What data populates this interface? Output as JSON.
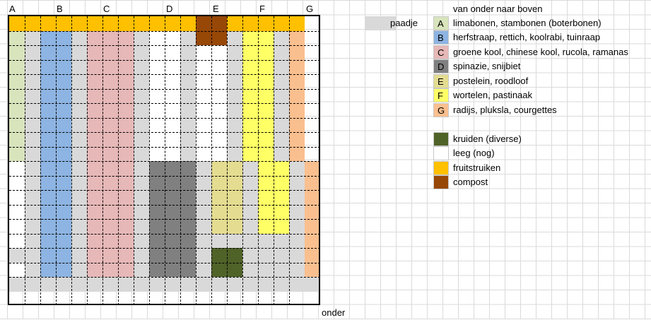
{
  "column_headers": [
    "A",
    "B",
    "C",
    "D",
    "E",
    "F",
    "G"
  ],
  "bottom_label": "onder",
  "path_label": "paadje",
  "legend": {
    "title": "van onder naar boven",
    "crops": [
      {
        "letter": "A",
        "label": "limabonen, stambonen (boterbonen)",
        "color": "#d8e4bc"
      },
      {
        "letter": "B",
        "label": "herfstraap, rettich, koolrabi,  tuinraap",
        "color": "#8db4e2"
      },
      {
        "letter": "C",
        "label": "groene kool, chinese kool, rucola, ramanas",
        "color": "#e6b8b7"
      },
      {
        "letter": "D",
        "label": "spinazie, snijbiet",
        "color": "#808080"
      },
      {
        "letter": "E",
        "label": "postelein, roodloof",
        "color": "#e4dc90"
      },
      {
        "letter": "F",
        "label": "wortelen, pastinaak",
        "color": "#ffff66"
      },
      {
        "letter": "G",
        "label": "radijs, pluksla, courgettes",
        "color": "#fabf8f"
      }
    ],
    "other": [
      {
        "label": "kruiden (diverse)",
        "color": "#4f6228"
      },
      {
        "label": "leeg (nog)",
        "color": "#ffffff"
      },
      {
        "label": "fruitstruiken",
        "color": "#ffc000"
      },
      {
        "label": "compost",
        "color": "#974706"
      }
    ],
    "path_color": "#d9d9d9"
  },
  "colors": {
    "fruit": "#ffc000",
    "compost": "#974706",
    "herbs": "#4f6228",
    "path": "#d9d9d9",
    "empty": "#ffffff",
    "A": "#d8e4bc",
    "B": "#8db4e2",
    "C": "#e6b8b7",
    "D": "#808080",
    "E": "#e4dc90",
    "F": "#ffff66",
    "G": "#fabf8f"
  },
  "garden_rows": [
    "YYYYYYYYYYYYOOYYYYY",
    "AP..PCCCPWWPOOPFFPG",
    "AP..PCCCPWWPWWPFFPG",
    "AP..PCCCPWWPWWPFFPG",
    "AP..PCCCPWWPWWPFFPG",
    "AP..PCCCPWWPWWPFFPG",
    "AP..PCCCPWWPWWPFFPG",
    "AP..PCCCPWWPWWPFFPG",
    "AP..PCCCPWWPWWPFFPG",
    "AP..PCCCPWWPWWPFFPG",
    "WP..PCCCPDDDPEEPFFPG",
    "WP..PCCCPDDDPEEPFFPG",
    "WP..PCCCPDDDPEEPFFPG",
    "WP..PCCCPDDDPEEPFFPG",
    "WP..PCCCPDDDPEEPFFPG",
    "WP..PCCCPDDDPPPPPPPG",
    "PP..PCCCPDDDPHHPPPPG",
    "WP..PCCCPDDDPHHPPPPG",
    "PPPPPPPPPPPPPPPPPPPP"
  ]
}
